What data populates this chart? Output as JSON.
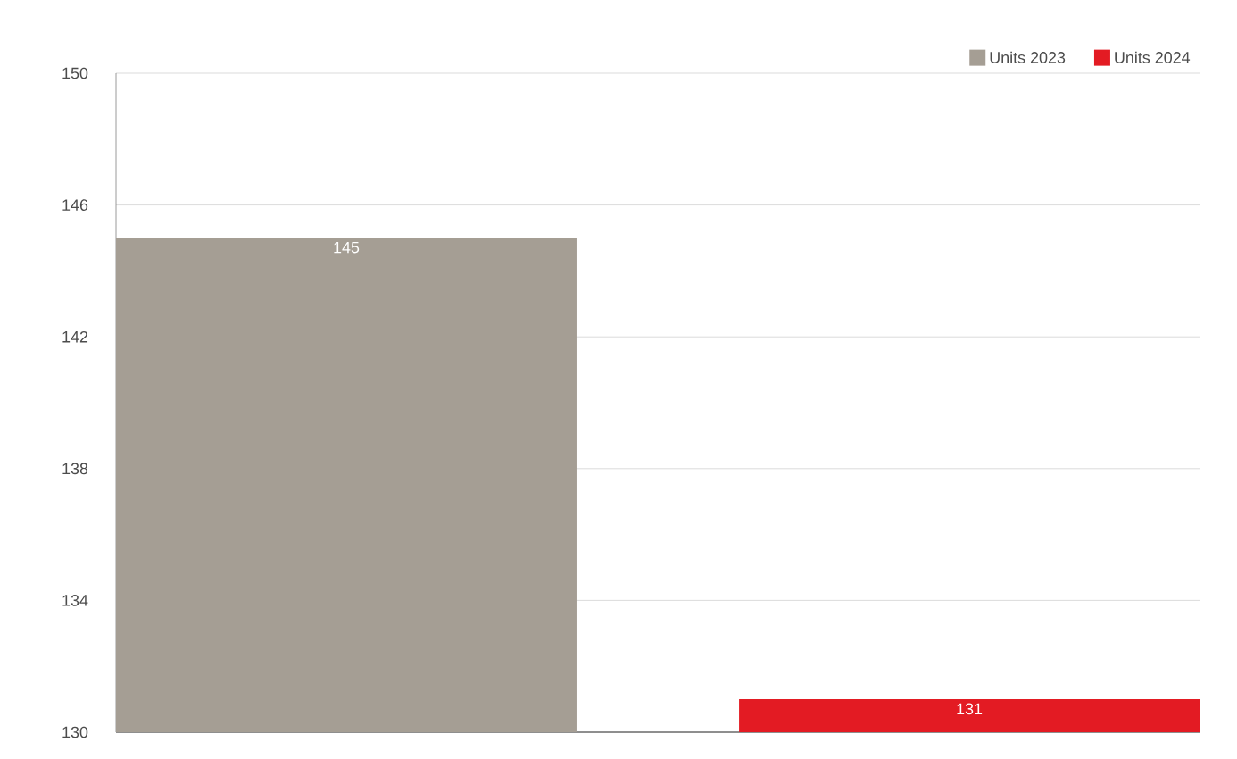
{
  "chart_data": {
    "type": "bar",
    "categories": [
      null
    ],
    "series": [
      {
        "name": "Units 2023",
        "color": "#a59e94",
        "values": [
          145
        ]
      },
      {
        "name": "Units 2024",
        "color": "#e31b23",
        "values": [
          131
        ]
      }
    ],
    "ylim": [
      130,
      150
    ],
    "yticks": [
      130,
      134,
      138,
      142,
      146,
      150
    ],
    "grid": "y",
    "legend": "top right",
    "data_labels": true
  }
}
